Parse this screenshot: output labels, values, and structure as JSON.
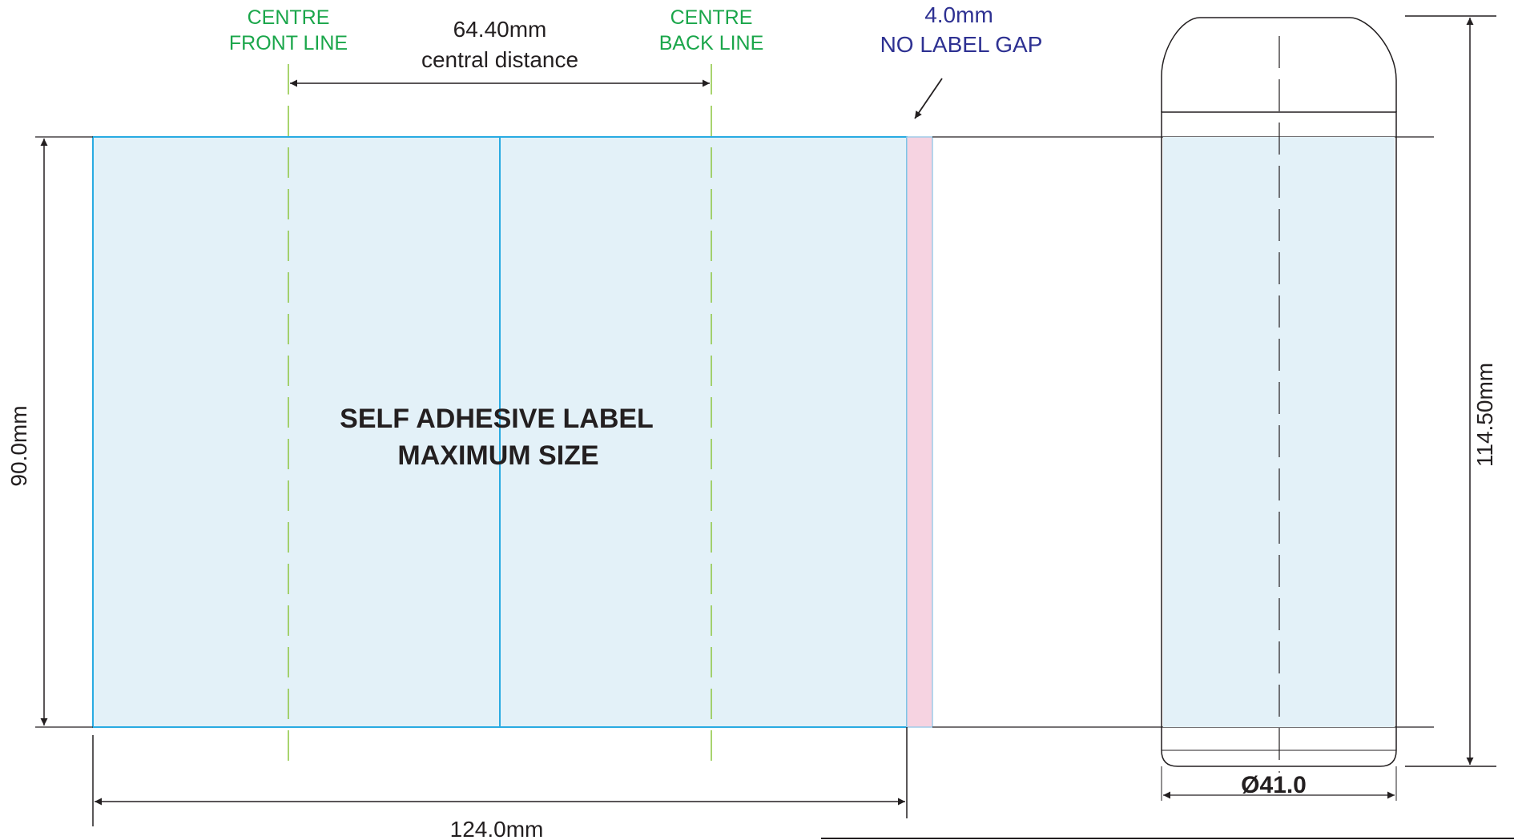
{
  "labels": {
    "centre_front": {
      "line1": "CENTRE",
      "line2": "FRONT LINE"
    },
    "centre_back": {
      "line1": "CENTRE",
      "line2": "BACK LINE"
    },
    "central_distance": {
      "value": "64.40mm",
      "caption": "central distance"
    },
    "gap": {
      "value": "4.0mm",
      "caption": "NO LABEL GAP"
    },
    "label_title": {
      "line1": "SELF ADHESIVE LABEL",
      "line2": "MAXIMUM SIZE"
    },
    "label_height": "90.0mm",
    "label_width": "124.0mm",
    "bottle_height": "114.50mm",
    "bottle_diameter": "Ø41.0"
  },
  "colors": {
    "label_fill": "#e3f1f8",
    "label_stroke": "#29abe2",
    "gap_fill": "#f6d3e1",
    "centre_line": "#8cc63f",
    "green_text": "#1aa64a",
    "blue_text": "#2e3192",
    "line_black": "#231f20"
  }
}
